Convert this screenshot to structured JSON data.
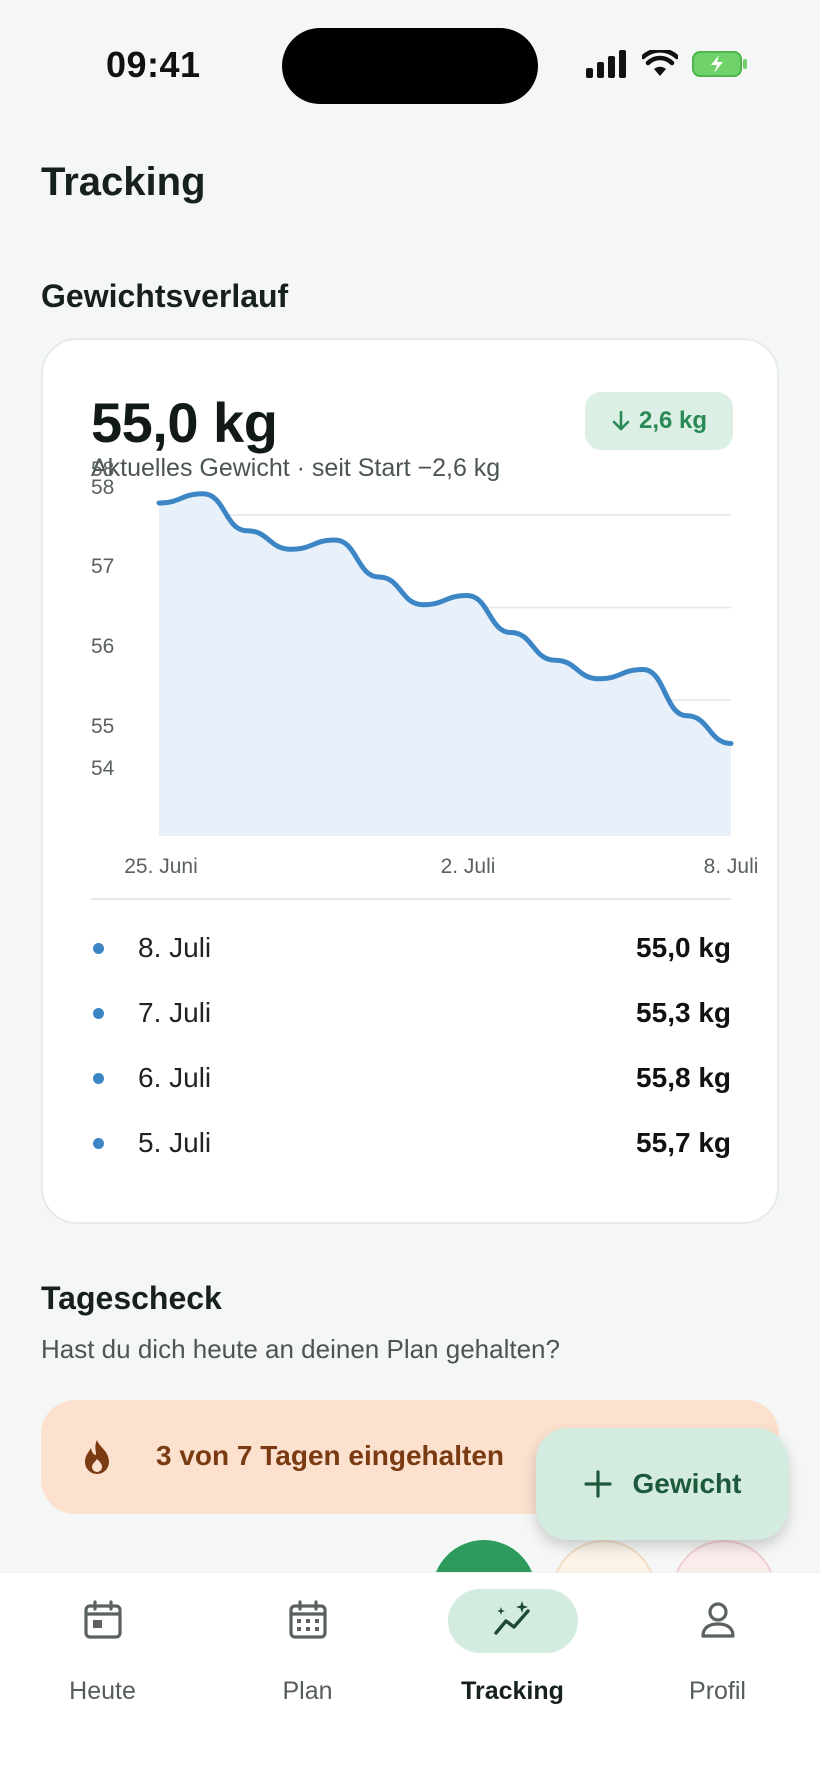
{
  "status_bar": {
    "time": "09:41",
    "icons": [
      "signal-icon",
      "wifi-icon",
      "battery-charging-icon"
    ]
  },
  "page": {
    "title": "Tracking"
  },
  "weight_section": {
    "title": "Gewichtsverlauf",
    "current_weight": "55,0 kg",
    "subtitle": "Aktuelles Gewicht · seit Start −2,6 kg",
    "delta_badge": "2,6 kg",
    "entries": [
      {
        "date": "8. Juli",
        "value": "55,0 kg"
      },
      {
        "date": "7. Juli",
        "value": "55,3 kg"
      },
      {
        "date": "6. Juli",
        "value": "55,8 kg"
      },
      {
        "date": "5. Juli",
        "value": "55,7 kg"
      }
    ]
  },
  "chart_data": {
    "type": "area",
    "x": [
      "25. Juni",
      "26. Juni",
      "27. Juni",
      "28. Juni",
      "29. Juni",
      "30. Juni",
      "1. Juli",
      "2. Juli",
      "3. Juli",
      "4. Juli",
      "5. Juli",
      "6. Juli",
      "7. Juli",
      "8. Juli"
    ],
    "series": [
      {
        "values": [
          57.6,
          57.7,
          57.3,
          57.1,
          57.2,
          56.8,
          56.5,
          56.6,
          56.2,
          55.9,
          55.7,
          55.8,
          55.3,
          55.0
        ]
      }
    ],
    "y_tick_labels": [
      "58",
      "58",
      "57",
      "56",
      "55",
      "54"
    ],
    "x_tick_labels": [
      "25. Juni",
      "2. Juli",
      "8. Juli"
    ],
    "ylim": [
      54,
      58
    ],
    "grid": true,
    "colors": {
      "line": "#3d86c6",
      "fill": "#e8f0fa",
      "grid": "#e1e6ea"
    }
  },
  "daily_check": {
    "title": "Tagescheck",
    "question": "Hast du dich heute an deinen Plan gehalten?",
    "streak_text": "3 von 7 Tagen eingehalten",
    "add_weight_label": "Gewicht"
  },
  "nav": {
    "items": [
      {
        "label": "Heute",
        "icon": "today-calendar-icon",
        "active": false
      },
      {
        "label": "Plan",
        "icon": "calendar-grid-icon",
        "active": false
      },
      {
        "label": "Tracking",
        "icon": "trend-sparkle-icon",
        "active": true
      },
      {
        "label": "Profil",
        "icon": "person-icon",
        "active": false
      }
    ]
  },
  "colors": {
    "accent_green": "#2a8a55",
    "badge_bg": "#dcefe4",
    "streak_bg": "#fce1cf",
    "chart_blue": "#3d86c6"
  }
}
